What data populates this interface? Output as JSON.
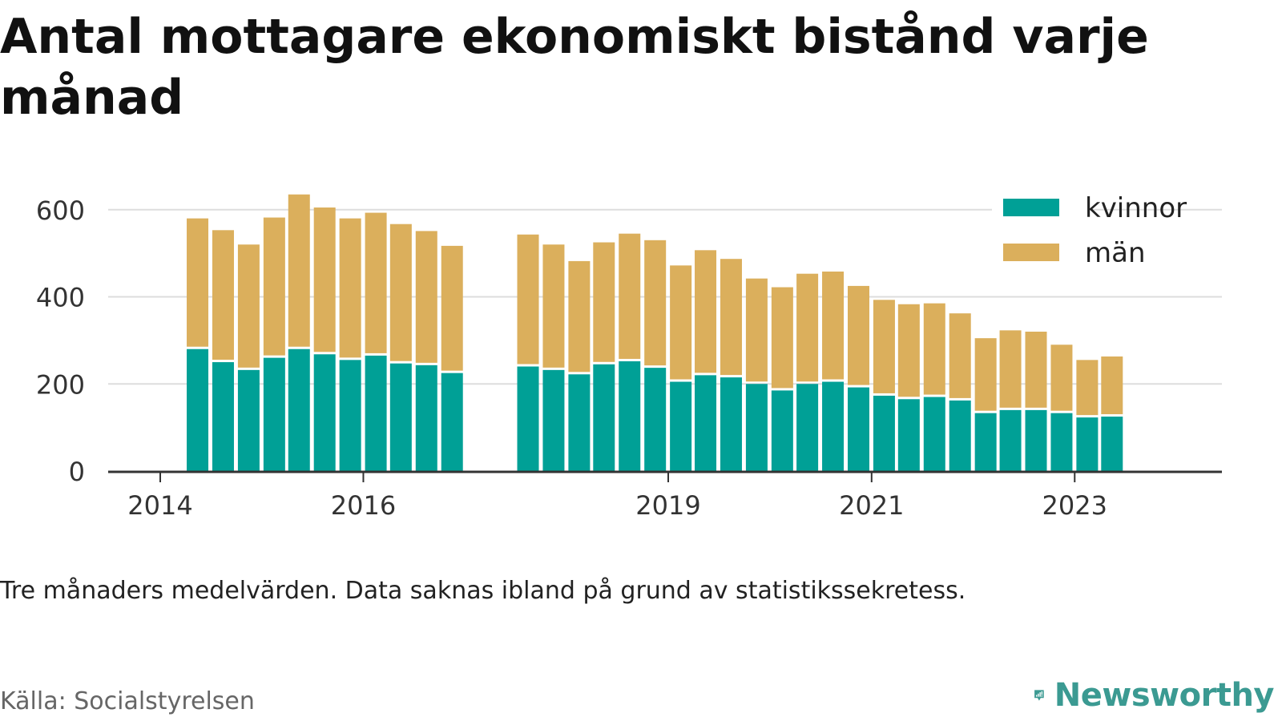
{
  "title": "Antal mottagare ekonomiskt bistånd varje månad",
  "note": "Tre månaders medelvärden. Data saknas ibland på grund av statistikssekretess.",
  "source": "Källa: Socialstyrelsen",
  "brand": "Newsworthy",
  "colors": {
    "kvinnor": "#00a096",
    "man": "#dbaf5c",
    "grid": "#dddddd",
    "axis": "#333333",
    "brand": "#3b9a92"
  },
  "chart_data": {
    "type": "bar",
    "stacked": true,
    "grid": true,
    "legend_position": "top-right",
    "ylim": [
      0,
      640
    ],
    "y_ticks": [
      0,
      200,
      400,
      600
    ],
    "x_domain": [
      "2014-01-01",
      "2024-01-01"
    ],
    "x_ticks": [
      {
        "date": "2014-01-01",
        "label": "2014"
      },
      {
        "date": "2016-01-01",
        "label": "2016"
      },
      {
        "date": "2019-01-01",
        "label": "2019"
      },
      {
        "date": "2021-01-01",
        "label": "2021"
      },
      {
        "date": "2023-01-01",
        "label": "2023"
      }
    ],
    "x": [
      "2014-05",
      "2014-08",
      "2014-11",
      "2015-02",
      "2015-05",
      "2015-08",
      "2015-11",
      "2016-02",
      "2016-05",
      "2016-08",
      "2016-11",
      "2017-08",
      "2017-11",
      "2018-02",
      "2018-05",
      "2018-08",
      "2018-11",
      "2019-02",
      "2019-05",
      "2019-08",
      "2019-11",
      "2020-02",
      "2020-05",
      "2020-08",
      "2020-11",
      "2021-02",
      "2021-05",
      "2021-08",
      "2021-11",
      "2022-02",
      "2022-05",
      "2022-08",
      "2022-11",
      "2023-02",
      "2023-05"
    ],
    "series": [
      {
        "name": "kvinnor",
        "values": [
          280,
          250,
          232,
          260,
          280,
          268,
          255,
          265,
          247,
          243,
          225,
          240,
          232,
          222,
          245,
          252,
          237,
          205,
          220,
          215,
          200,
          185,
          200,
          205,
          192,
          173,
          165,
          170,
          162,
          133,
          140,
          140,
          133,
          123,
          125
        ]
      },
      {
        "name": "män",
        "values": [
          300,
          303,
          288,
          322,
          355,
          337,
          325,
          328,
          320,
          308,
          292,
          303,
          288,
          260,
          280,
          293,
          293,
          267,
          287,
          272,
          242,
          237,
          253,
          253,
          233,
          220,
          218,
          215,
          200,
          172,
          183,
          180,
          157,
          132,
          138
        ]
      }
    ]
  }
}
